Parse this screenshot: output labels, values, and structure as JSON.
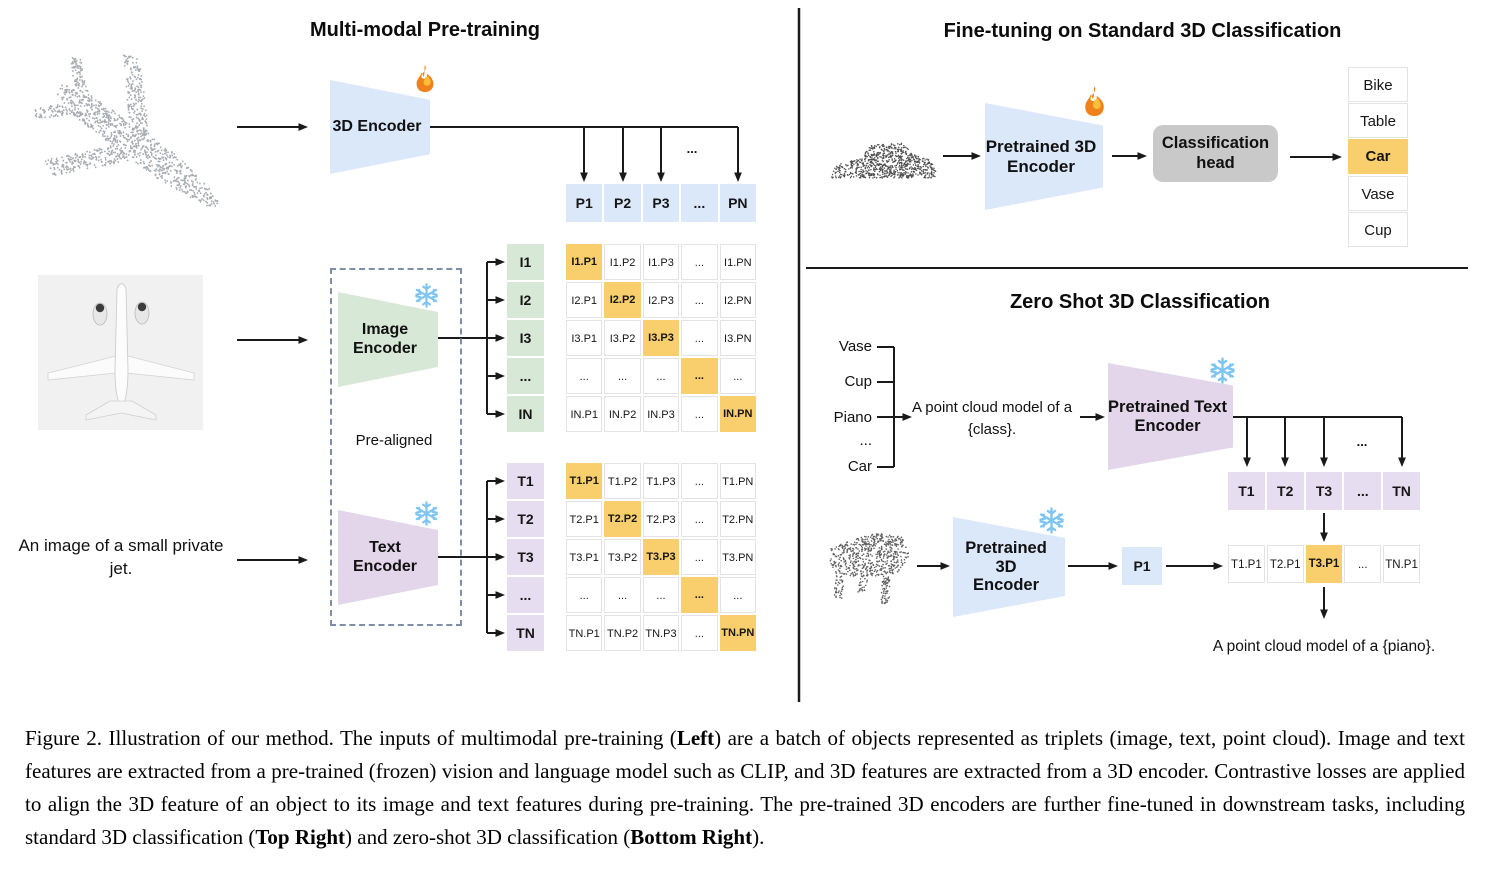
{
  "left_panel": {
    "title": "Multi-modal Pre-training",
    "encoder_3d": {
      "label": "3D Encoder"
    },
    "image_encoder": {
      "l1": "Image",
      "l2": "Encoder"
    },
    "text_encoder": {
      "l1": "Text",
      "l2": "Encoder"
    },
    "pre_aligned_label": "Pre-aligned",
    "text_input": "An image of a small private jet.",
    "dots": "...",
    "p_row": [
      "P1",
      "P2",
      "P3",
      "...",
      "PN"
    ],
    "i_labels": [
      "I1",
      "I2",
      "I3",
      "...",
      "IN"
    ],
    "i_matrix": [
      [
        "I1.P1",
        "I1.P2",
        "I1.P3",
        "...",
        "I1.PN"
      ],
      [
        "I2.P1",
        "I2.P2",
        "I2.P3",
        "...",
        "I2.PN"
      ],
      [
        "I3.P1",
        "I3.P2",
        "I3.P3",
        "...",
        "I3.PN"
      ],
      [
        "...",
        "...",
        "...",
        "...",
        "..."
      ],
      [
        "IN.P1",
        "IN.P2",
        "IN.P3",
        "...",
        "IN.PN"
      ]
    ],
    "t_labels": [
      "T1",
      "T2",
      "T3",
      "...",
      "TN"
    ],
    "t_matrix": [
      [
        "T1.P1",
        "T1.P2",
        "T1.P3",
        "...",
        "T1.PN"
      ],
      [
        "T2.P1",
        "T2.P2",
        "T2.P3",
        "...",
        "T2.PN"
      ],
      [
        "T3.P1",
        "T3.P2",
        "T3.P3",
        "...",
        "T3.PN"
      ],
      [
        "...",
        "...",
        "...",
        "...",
        "..."
      ],
      [
        "TN.P1",
        "TN.P2",
        "TN.P3",
        "...",
        "TN.PN"
      ]
    ]
  },
  "top_right": {
    "title": "Fine-tuning on Standard 3D Classification",
    "encoder": {
      "l1": "Pretrained 3D",
      "l2": "Encoder"
    },
    "head": {
      "l1": "Classification",
      "l2": "head"
    },
    "classes": [
      "Bike",
      "Table",
      "Car",
      "Vase",
      "Cup"
    ],
    "highlighted_class": "Car",
    "highlight_index": 2
  },
  "bottom_right": {
    "title": "Zero Shot 3D Classification",
    "class_prompts": [
      "Vase",
      "Cup",
      "Piano",
      "...",
      "Car"
    ],
    "prompt_text": "A point cloud model of a {class}.",
    "text_encoder": {
      "l1": "Pretrained Text",
      "l2": "Encoder"
    },
    "encoder_3d": {
      "l1": "Pretrained 3D",
      "l2": "Encoder"
    },
    "p1_label": "P1",
    "t_row": [
      "T1",
      "T2",
      "T3",
      "...",
      "TN"
    ],
    "sim_row": [
      "T1.P1",
      "T2.P1",
      "T3.P1",
      "...",
      "TN.P1"
    ],
    "sim_highlight_index": 2,
    "dots": "...",
    "result_text": "A point cloud model of a {piano}."
  },
  "icons": {
    "trainable": "fire-icon",
    "frozen": "snowflake-icon"
  },
  "colors": {
    "blue": "#dbe8fa",
    "green": "#d7e9d6",
    "purple": "#e7ddf0",
    "purple_trap": "#e3d5ea",
    "orange": "#f9cf6d",
    "gray_head": "#c9c9c9",
    "plane_cloud": "#a7abb0",
    "car_cloud": "#4e4e4e",
    "piano_cloud": "#5f5f5f"
  },
  "caption": {
    "parts": [
      {
        "text": "Figure 2. Illustration of our method. The inputs of multimodal pre-training (",
        "bold": false
      },
      {
        "text": "Left",
        "bold": true
      },
      {
        "text": ") are a batch of objects represented as triplets (image, text, point cloud).  Image and text features are extracted from a pre-trained (frozen) vision and language model such as CLIP, and 3D features are extracted from a 3D encoder.  Contrastive losses are applied to align the 3D feature of an object to its image and text features during pre-training.  The pre-trained 3D encoders are further fine-tuned in downstream tasks, including standard 3D classification (",
        "bold": false
      },
      {
        "text": "Top Right",
        "bold": true
      },
      {
        "text": ") and zero-shot 3D classification (",
        "bold": false
      },
      {
        "text": "Bottom Right",
        "bold": true
      },
      {
        "text": ").",
        "bold": false
      }
    ]
  }
}
